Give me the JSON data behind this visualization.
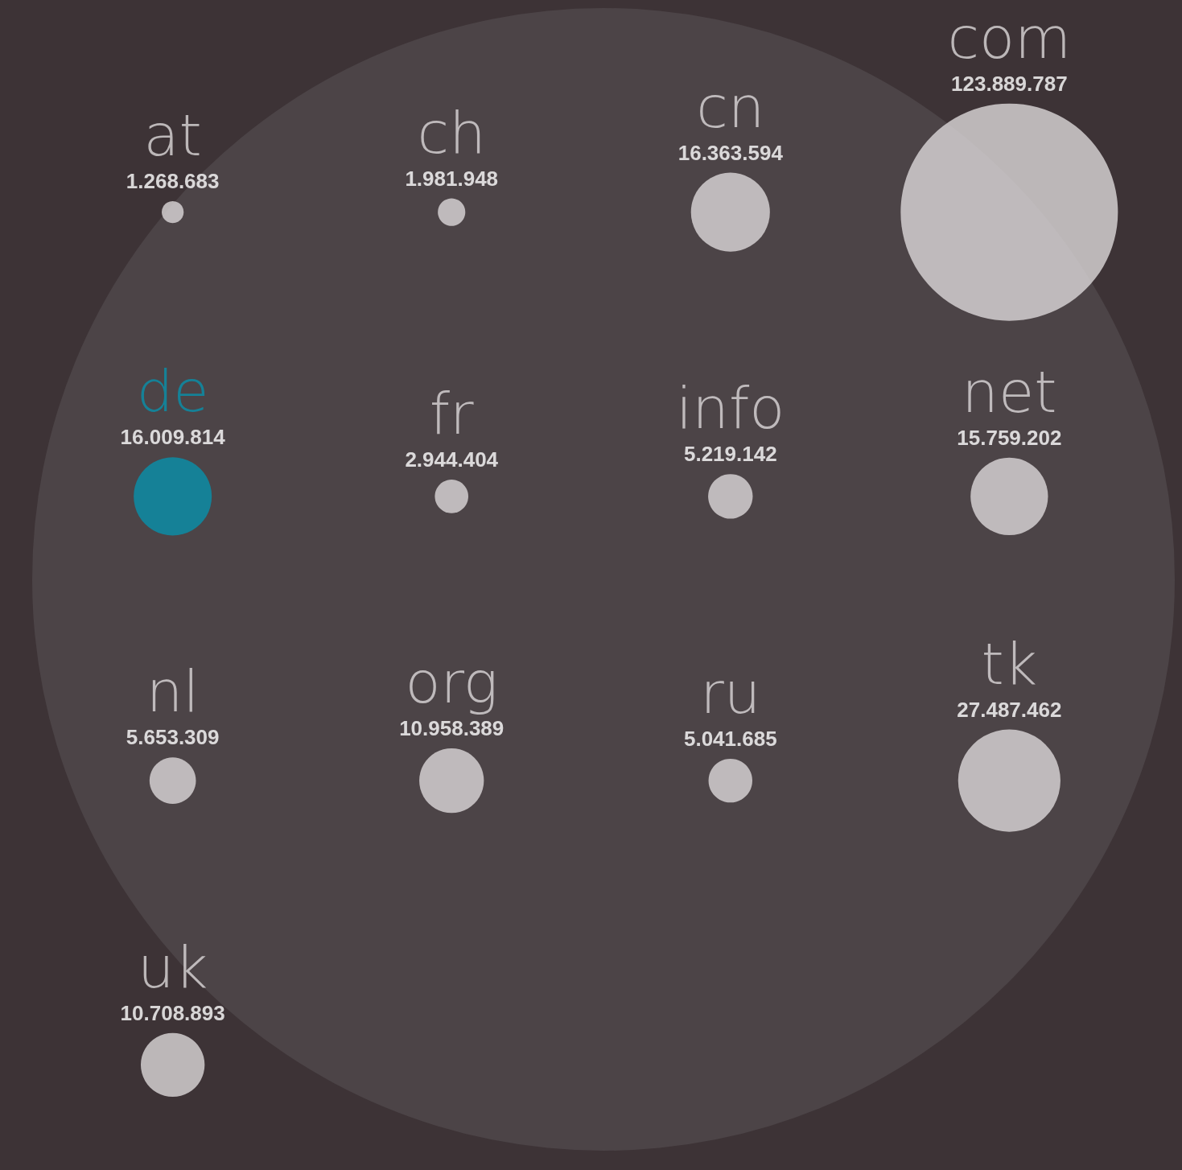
{
  "chart_data": {
    "type": "other",
    "categories": [
      "at",
      "ch",
      "cn",
      "com",
      "de",
      "fr",
      "info",
      "net",
      "nl",
      "org",
      "ru",
      "tk",
      "uk"
    ],
    "values": [
      1268683,
      1981948,
      16363594,
      123889787,
      16009814,
      2944404,
      5219142,
      15759202,
      5653309,
      10958389,
      5041685,
      27487462,
      10708893
    ],
    "value_labels": [
      "1.268.683",
      "1.981.948",
      "16.363.594",
      "123.889.787",
      "16.009.814",
      "2.944.404",
      "5.219.142",
      "15.759.202",
      "5.653.309",
      "10.958.389",
      "5.041.685",
      "27.487.462",
      "10.708.893"
    ],
    "colors": [
      "#dcd8da",
      "#dcd8da",
      "#dcd8da",
      "#dcd8da",
      "#0791ab",
      "#dcd8da",
      "#dcd8da",
      "#dcd8da",
      "#dcd8da",
      "#dcd8da",
      "#dcd8da",
      "#dcd8da",
      "#dcd8da"
    ]
  }
}
